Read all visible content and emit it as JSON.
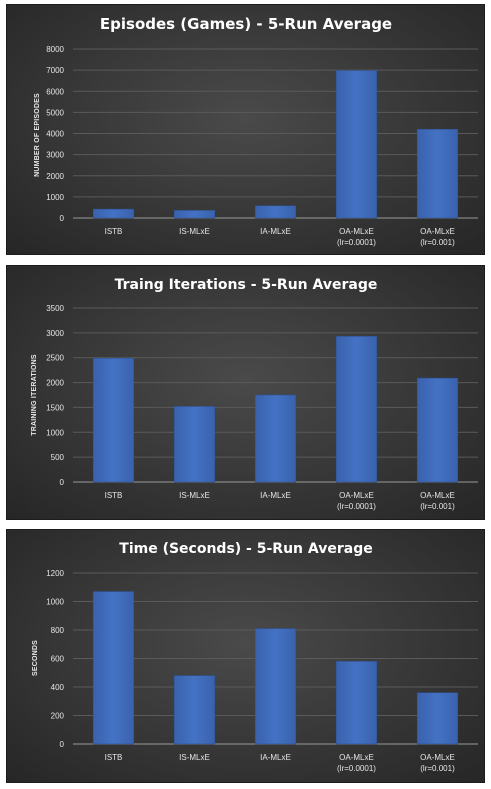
{
  "chart_data": [
    {
      "type": "bar",
      "title": "Episodes (Games) - 5-Run Average",
      "xlabel": "",
      "ylabel": "NUMBER OF EPISODES",
      "categories": [
        [
          "ISTB"
        ],
        [
          "IS-MLxE"
        ],
        [
          "IA-MLxE"
        ],
        [
          "OA-MLxE",
          "(lr=0.0001)"
        ],
        [
          "OA-MLxE",
          "(lr=0.001)"
        ]
      ],
      "values": [
        420,
        360,
        580,
        6980,
        4200
      ],
      "ylim": [
        0,
        8000
      ],
      "yticks": [
        0,
        1000,
        2000,
        3000,
        4000,
        5000,
        6000,
        7000,
        8000
      ],
      "grid": true,
      "bar_color": "#4472c4"
    },
    {
      "type": "bar",
      "title": "Traing Iterations - 5-Run Average",
      "xlabel": "",
      "ylabel": "TRAINING ITERATIONS",
      "categories": [
        [
          "ISTB"
        ],
        [
          "IS-MLxE"
        ],
        [
          "IA-MLxE"
        ],
        [
          "OA-MLxE",
          "(lr=0.0001)"
        ],
        [
          "OA-MLxE",
          "(lr=0.001)"
        ]
      ],
      "values": [
        2490,
        1520,
        1750,
        2930,
        2090
      ],
      "ylim": [
        0,
        3500
      ],
      "yticks": [
        0,
        500,
        1000,
        1500,
        2000,
        2500,
        3000,
        3500
      ],
      "grid": true,
      "bar_color": "#4472c4"
    },
    {
      "type": "bar",
      "title": "Time (Seconds) - 5-Run Average",
      "xlabel": "",
      "ylabel": "SECONDS",
      "categories": [
        [
          "ISTB"
        ],
        [
          "IS-MLxE"
        ],
        [
          "IA-MLxE"
        ],
        [
          "OA-MLxE",
          "(lr=0.0001)"
        ],
        [
          "OA-MLxE",
          "(lr=0.001)"
        ]
      ],
      "values": [
        1070,
        480,
        810,
        580,
        360
      ],
      "ylim": [
        0,
        1200
      ],
      "yticks": [
        0,
        200,
        400,
        600,
        800,
        1000,
        1200
      ],
      "grid": true,
      "bar_color": "#4472c4"
    }
  ]
}
